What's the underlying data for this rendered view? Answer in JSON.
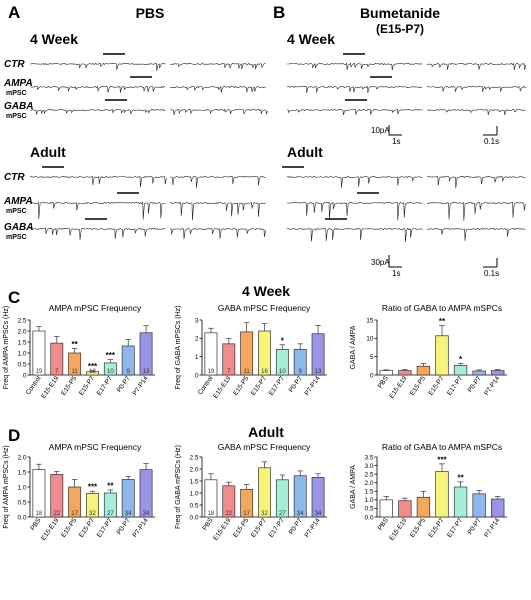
{
  "panels": {
    "A": {
      "letter": "A",
      "title": "PBS"
    },
    "B": {
      "letter": "B",
      "title": "Bumetanide",
      "subtitle": "(E15-P7)"
    },
    "C": {
      "letter": "C",
      "title": "4 Week"
    },
    "D": {
      "letter": "D",
      "title": "Adult"
    }
  },
  "traces": {
    "row_labels": [
      {
        "name": "CTR",
        "sub": ""
      },
      {
        "name": "AMPA",
        "sub": "mPSC"
      },
      {
        "name": "GABA",
        "sub": "mPSC"
      }
    ],
    "group_4week": "4 Week",
    "group_adult": "Adult",
    "scale_4week": {
      "amp": "10pA",
      "time_long": "1s",
      "time_short": "0.1s"
    },
    "scale_adult": {
      "amp": "30pA",
      "time_long": "1s",
      "time_short": "0.1s"
    }
  },
  "colors": {
    "PBS": "#ffffff",
    "Control": "#ffffff",
    "E15-E19": "#f08c8c",
    "E15-P5": "#f5a85c",
    "E15-P7": "#f7f37a",
    "E17-P7": "#a5efd8",
    "P0-P7": "#8cb8ee",
    "P7-P14": "#9a94e6"
  },
  "chart_data": [
    {
      "id": "C1",
      "type": "bar",
      "title": "AMPA mPSC Frequency",
      "ylabel": "Freq of AMPA mPSCs (Hz)",
      "ylim": [
        0,
        2.5
      ],
      "yticks": [
        0,
        0.5,
        1.0,
        1.5,
        2.0,
        2.5
      ],
      "ytick_labels": [
        "0",
        "0.5",
        "1.0",
        "1.5",
        "2.0",
        "2.5"
      ],
      "categories": [
        "Control",
        "E15-E19",
        "E15-P5",
        "E15-P7",
        "E17-P7",
        "P0-P7",
        "P7-P14"
      ],
      "values": [
        2.0,
        1.45,
        1.0,
        0.15,
        0.55,
        1.32,
        1.92
      ],
      "errors": [
        0.2,
        0.3,
        0.2,
        0.05,
        0.15,
        0.3,
        0.32
      ],
      "n": [
        "19",
        "7",
        "11",
        "12",
        "10",
        "9",
        "13"
      ],
      "significance": [
        "",
        "",
        "**",
        "***",
        "***",
        "",
        ""
      ]
    },
    {
      "id": "C2",
      "type": "bar",
      "title": "GABA mPSC Frequency",
      "ylabel": "Freq of GABA mPSCs (Hz)",
      "ylim": [
        0,
        3
      ],
      "yticks": [
        0,
        1,
        2,
        3
      ],
      "ytick_labels": [
        "0",
        "1",
        "2",
        "3"
      ],
      "categories": [
        "Control",
        "E15-E19",
        "E15-P5",
        "E15-P7",
        "E17-P7",
        "P0-P7",
        "P7-P14"
      ],
      "values": [
        2.3,
        1.7,
        2.35,
        2.4,
        1.4,
        1.4,
        2.25
      ],
      "errors": [
        0.25,
        0.3,
        0.5,
        0.4,
        0.25,
        0.3,
        0.45
      ],
      "n": [
        "19",
        "7",
        "11",
        "16",
        "10",
        "9",
        "13"
      ],
      "significance": [
        "",
        "",
        "",
        "",
        "*",
        "",
        ""
      ]
    },
    {
      "id": "C3",
      "type": "bar",
      "title": "Ratio of  GABA to AMPA mSPCs",
      "ylabel": "GABA / AMPA",
      "ylim": [
        0,
        15
      ],
      "yticks": [
        0,
        5,
        10,
        15
      ],
      "ytick_labels": [
        "0",
        "5",
        "10",
        "15"
      ],
      "categories": [
        "PBS",
        "E15-E19",
        "E15-P5",
        "E15-P7",
        "E17-P7",
        "P0-P7",
        "P7-P14"
      ],
      "values": [
        1.2,
        1.2,
        2.4,
        10.7,
        2.6,
        1.1,
        1.2
      ],
      "errors": [
        0.2,
        0.3,
        0.7,
        2.8,
        0.5,
        0.3,
        0.3
      ],
      "n": [
        "",
        "",
        "",
        "",
        "",
        "",
        ""
      ],
      "significance": [
        "",
        "",
        "",
        "**",
        "*",
        "",
        ""
      ]
    },
    {
      "id": "D1",
      "type": "bar",
      "title": "AMPA mPSC Frequency",
      "ylabel": "Freq of AMPA mPSCs (Hz)",
      "ylim": [
        0,
        2.0
      ],
      "yticks": [
        0,
        0.5,
        1.0,
        1.5,
        2.0
      ],
      "ytick_labels": [
        "0.0",
        "0.5",
        "1.0",
        "1.5",
        "2.0"
      ],
      "categories": [
        "PBS",
        "E15-E19",
        "E15-P5",
        "E15-P7",
        "E17-P7",
        "P0-P7",
        "P7-P14"
      ],
      "values": [
        1.58,
        1.42,
        1.0,
        0.78,
        0.8,
        1.25,
        1.58
      ],
      "errors": [
        0.18,
        0.1,
        0.25,
        0.08,
        0.1,
        0.1,
        0.2
      ],
      "n": [
        "18",
        "22",
        "17",
        "32",
        "27",
        "34",
        "34"
      ],
      "significance": [
        "",
        "",
        "",
        "***",
        "**",
        "",
        ""
      ]
    },
    {
      "id": "D2",
      "type": "bar",
      "title": "GABA mPSC Frequency",
      "ylabel": "Freq of GABA mPSCs (Hz)",
      "ylim": [
        0,
        2.5
      ],
      "yticks": [
        0,
        0.5,
        1.0,
        1.5,
        2.0,
        2.5
      ],
      "ytick_labels": [
        "0.0",
        "0.5",
        "1.0",
        "1.5",
        "2.0",
        "2.5"
      ],
      "categories": [
        "PBS",
        "E15-E19",
        "E15-P5",
        "E15-P7",
        "E17-P7",
        "P0-P7",
        "P7-P14"
      ],
      "values": [
        1.55,
        1.3,
        1.15,
        2.05,
        1.55,
        1.72,
        1.65
      ],
      "errors": [
        0.25,
        0.15,
        0.2,
        0.25,
        0.2,
        0.2,
        0.15
      ],
      "n": [
        "18",
        "22",
        "17",
        "32",
        "27",
        "34",
        "34"
      ],
      "significance": [
        "",
        "",
        "",
        "",
        "",
        "",
        ""
      ]
    },
    {
      "id": "D3",
      "type": "bar",
      "title": "Ratio of  GABA to AMPA mSPCs",
      "ylabel": "GABA / AMPA",
      "ylim": [
        0,
        3.5
      ],
      "yticks": [
        0,
        0.5,
        1.0,
        1.5,
        2.0,
        2.5,
        3.0,
        3.5
      ],
      "ytick_labels": [
        "0.0",
        "0.5",
        "1.0",
        "1.5",
        "2.0",
        "2.5",
        "3.0",
        "3.5"
      ],
      "categories": [
        "PBS",
        "E15-E19",
        "E15-P5",
        "E15-P7",
        "E17-P7",
        "P0-P7",
        "P7-P14"
      ],
      "values": [
        1.0,
        0.95,
        1.15,
        2.65,
        1.75,
        1.35,
        1.05
      ],
      "errors": [
        0.2,
        0.15,
        0.35,
        0.45,
        0.3,
        0.2,
        0.15
      ],
      "n": [
        "",
        "",
        "",
        "",
        "",
        "",
        ""
      ],
      "significance": [
        "",
        "",
        "",
        "***",
        "**",
        "",
        ""
      ]
    }
  ]
}
